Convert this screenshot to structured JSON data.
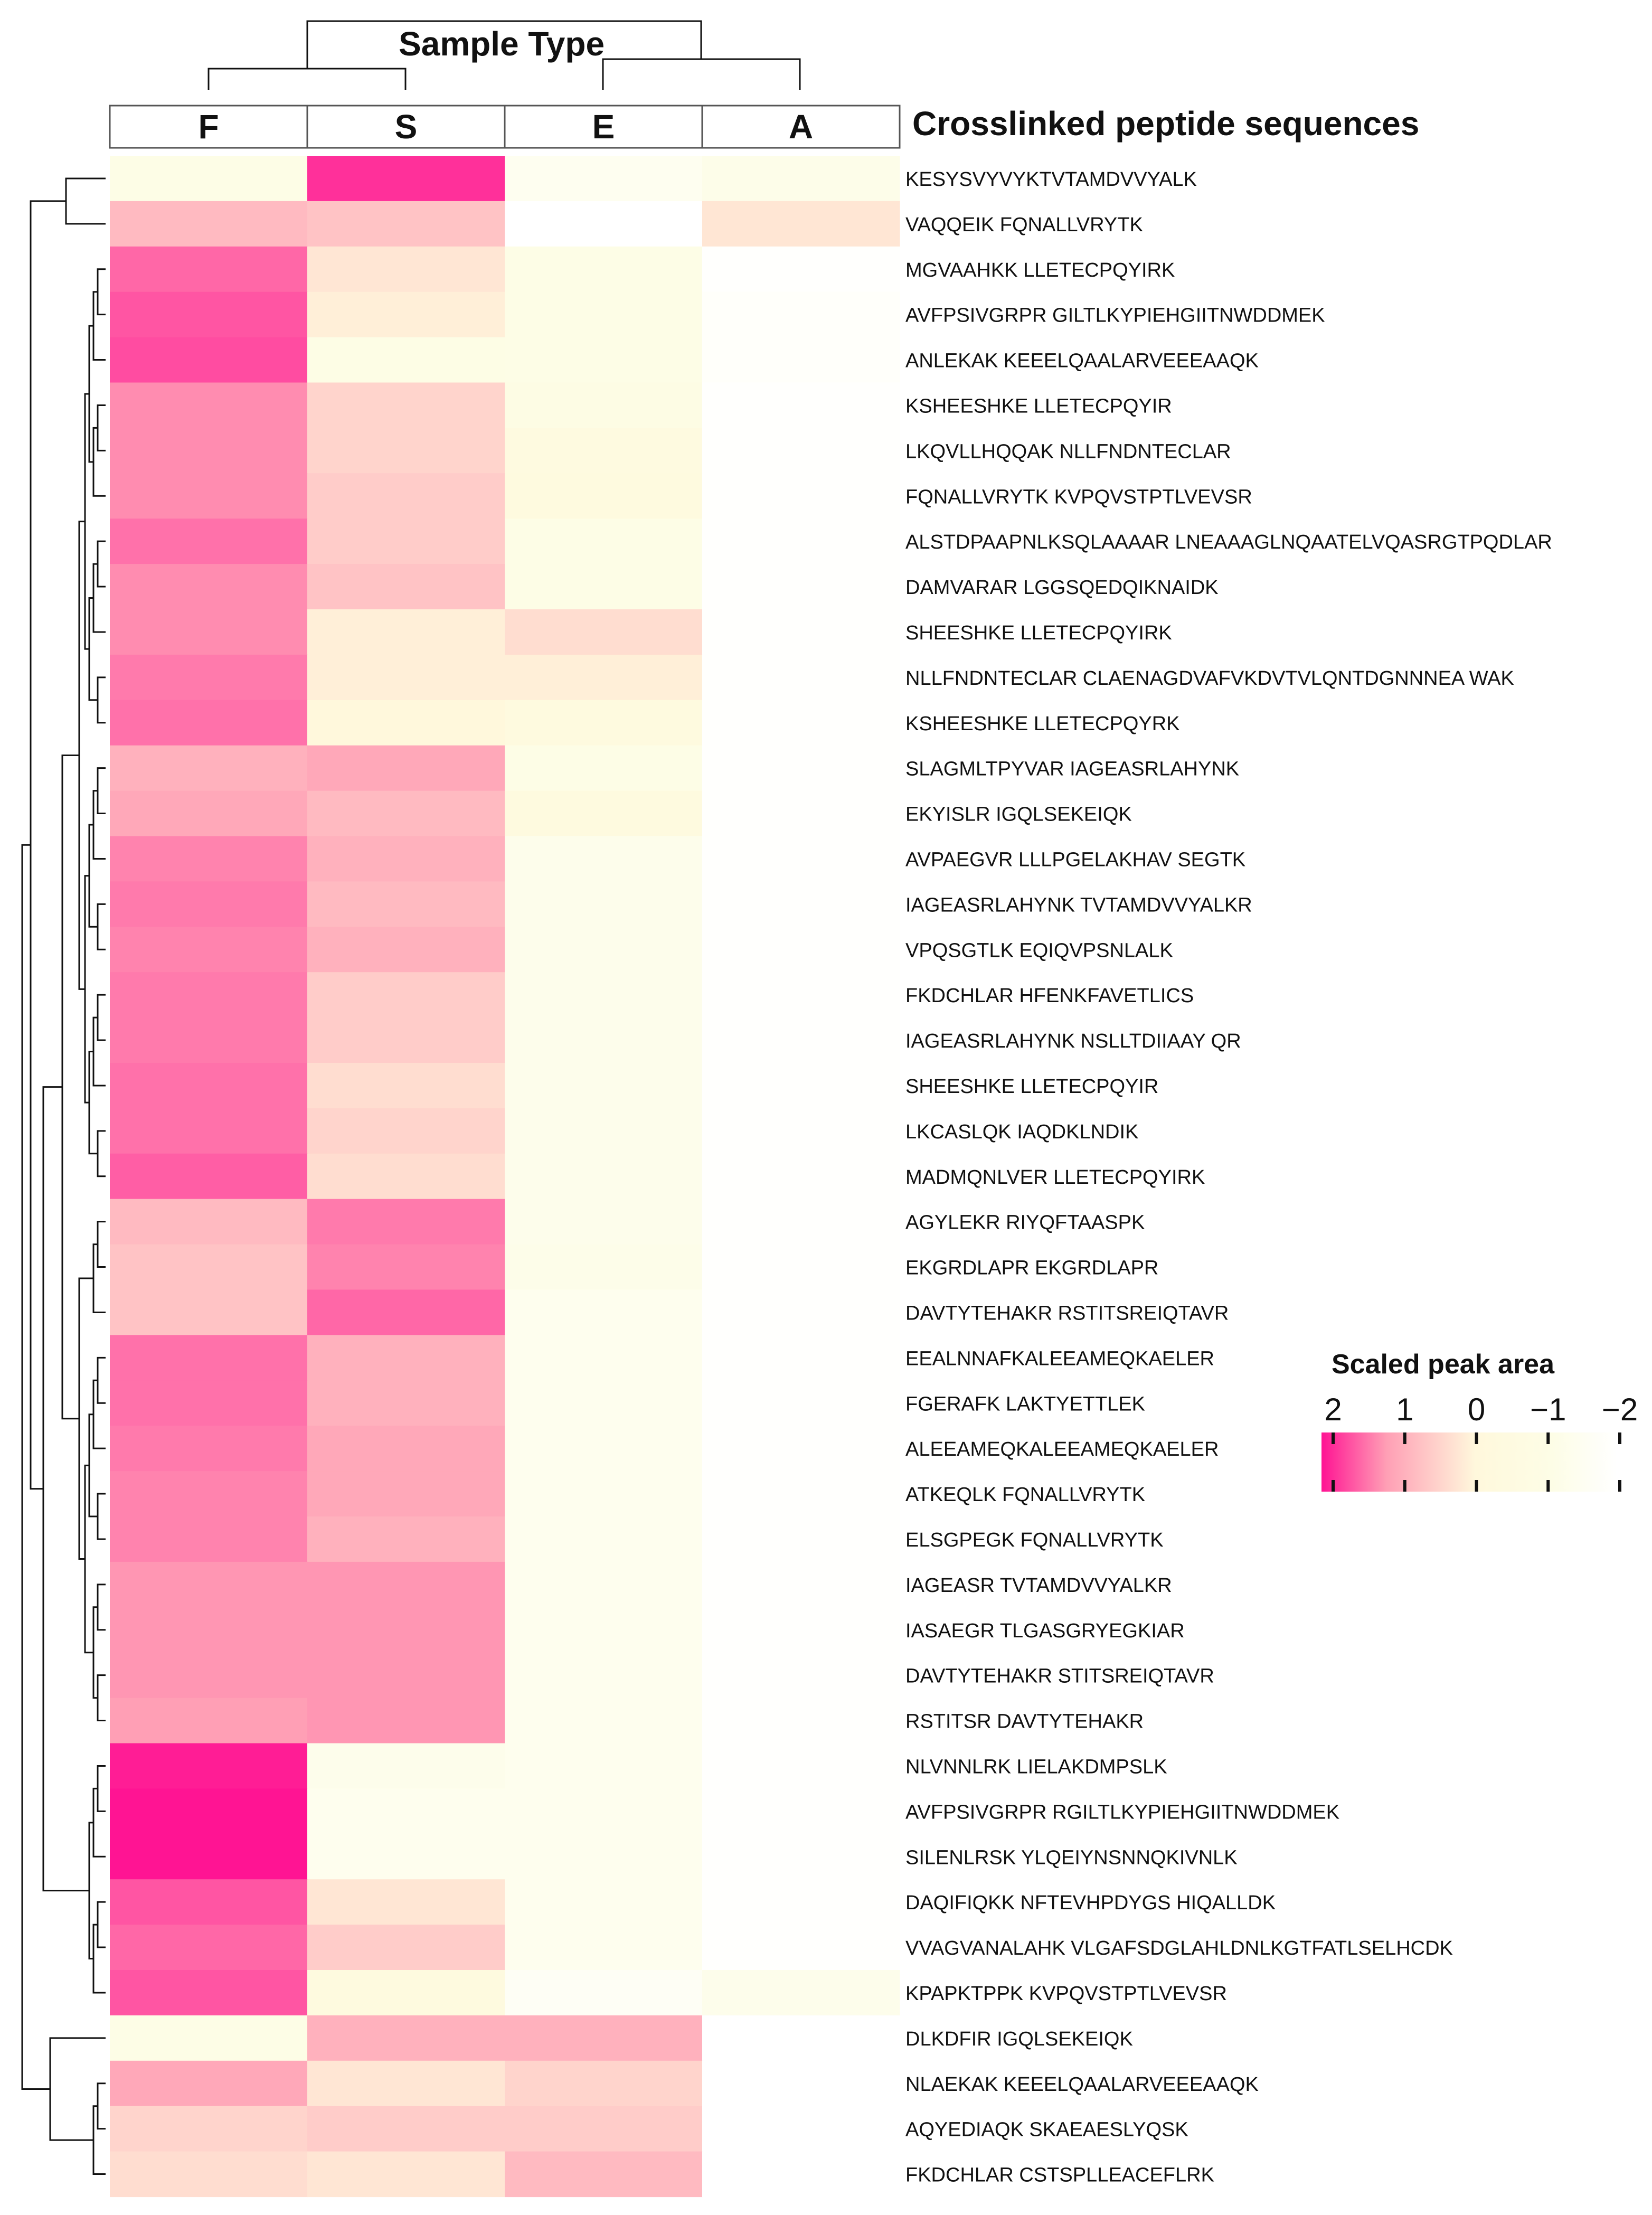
{
  "chart_data": {
    "type": "heatmap",
    "column_dendrogram_title": "Sample Type",
    "row_axis_title": "Crosslinked peptide sequences",
    "columns": [
      "F",
      "S",
      "E",
      "A"
    ],
    "rows": [
      "KESYSVYVYKTVTAMDVVYALK",
      "VAQQEIK FQNALLVRYTK",
      "MGVAAHKK LLETECPQYIRK",
      "AVFPSIVGRPR GILTLKYPIEHGIITNWDDMEK",
      "ANLEKAK KEEELQAALARVEEEAAQK",
      "KSHEESHKE LLETECPQYIR",
      "LKQVLLHQQAK NLLFNDNTECLAR",
      "FQNALLVRYTK KVPQVSTPTLVEVSR",
      "ALSTDPAAPNLKSQLAAAAR LNEAAAGLNQAATELVQASRGTPQDLAR",
      "DAMVARAR LGGSQEDQIKNAIDK",
      "SHEESHKE LLETECPQYIRK",
      "NLLFNDNTECLAR CLAENAGDVAFVKDVTVLQNTDGNNNEA WAK",
      "KSHEESHKE LLETECPQYRK",
      "SLAGMLTPYVAR IAGEASRLAHYNK",
      "EKYISLR IGQLSEKEIQK",
      "AVPAEGVR LLLPGELAKHAV SEGTK",
      "IAGEASRLAHYNK TVTAMDVVYALKR",
      "VPQSGTLK EQIQVPSNLALK",
      "FKDCHLAR HFENKFAVETLICS",
      "IAGEASRLAHYNK NSLLTDIIAAY QR",
      "SHEESHKE LLETECPQYIR",
      "LKCASLQK IAQDKLNDIK",
      "MADMQNLVER LLETECPQYIRK",
      "AGYLEKR RIYQFTAASPK",
      "EKGRDLAPR EKGRDLAPR",
      "DAVTYTEHAKR RSTITSREIQTAVR",
      "EEALNNAFKALEEAMEQKAELER",
      "FGERAFK LAKTYETTLEK",
      "ALEEAMEQKALEEAMEQKAELER",
      "ATKEQLK FQNALLVRYTK",
      "ELSGPEGK FQNALLVRYTK",
      "IAGEASR TVTAMDVVYALKR",
      "IASAEGR TLGASGRYEGKIAR",
      "DAVTYTEHAKR STITSREIQTAVR",
      "RSTITSR DAVTYTEHAKR",
      "NLVNNLRK LIELAKDMPSLK",
      "AVFPSIVGRPR RGILTLKYPIEHGIITNWDDMEK",
      "SILENLRSK YLQEIYNSNNQKIVNLK",
      "DAQIFIQKK NFTEVHPDYGS HIQALLDK",
      "VVAGVANALAHK VLGAFSDGLAHLDNLKGTFATLSELHCDK",
      "KPAPKTPPK KVPQVSTPTLVEVSR",
      "DLKDFIR IGQLSEKEIQK",
      "NLAEKAK KEEELQAALARVEEEAAQK",
      "AQYEDIAQK SKAEAESLYQSK",
      "FKDCHLAR CSTSPLLEACEFLRK"
    ],
    "values": [
      [
        -1.0,
        2.2,
        -1.4,
        -1.1
      ],
      [
        0.7,
        0.6,
        -2.0,
        0.2
      ],
      [
        1.6,
        0.2,
        -1.0,
        -1.9
      ],
      [
        1.8,
        0.1,
        -1.0,
        -1.8
      ],
      [
        1.9,
        -0.9,
        -1.0,
        -1.8
      ],
      [
        1.2,
        0.4,
        -0.8,
        -1.9
      ],
      [
        1.2,
        0.4,
        -0.4,
        -1.9
      ],
      [
        1.2,
        0.5,
        -0.3,
        -1.9
      ],
      [
        1.5,
        0.5,
        -1.0,
        -1.9
      ],
      [
        1.2,
        0.6,
        -1.0,
        -1.9
      ],
      [
        1.2,
        0.1,
        0.3,
        -1.9
      ],
      [
        1.4,
        0.1,
        0.1,
        -1.9
      ],
      [
        1.5,
        0.0,
        -0.3,
        -1.9
      ],
      [
        0.8,
        0.9,
        -1.0,
        -1.9
      ],
      [
        0.9,
        0.7,
        -0.3,
        -1.9
      ],
      [
        1.3,
        0.8,
        -1.2,
        -1.9
      ],
      [
        1.4,
        0.7,
        -1.2,
        -1.9
      ],
      [
        1.3,
        0.8,
        -1.2,
        -1.9
      ],
      [
        1.4,
        0.5,
        -1.2,
        -1.9
      ],
      [
        1.4,
        0.5,
        -1.2,
        -1.9
      ],
      [
        1.5,
        0.3,
        -1.2,
        -1.9
      ],
      [
        1.5,
        0.4,
        -1.2,
        -1.9
      ],
      [
        1.7,
        0.3,
        -1.2,
        -1.9
      ],
      [
        0.7,
        1.4,
        -1.2,
        -1.9
      ],
      [
        0.6,
        1.3,
        -1.1,
        -1.9
      ],
      [
        0.6,
        1.6,
        -1.3,
        -1.9
      ],
      [
        1.5,
        0.8,
        -1.3,
        -1.9
      ],
      [
        1.5,
        0.8,
        -1.3,
        -1.9
      ],
      [
        1.4,
        0.9,
        -1.3,
        -1.9
      ],
      [
        1.3,
        0.9,
        -1.3,
        -1.9
      ],
      [
        1.3,
        0.8,
        -1.3,
        -1.9
      ],
      [
        1.1,
        1.1,
        -1.3,
        -1.9
      ],
      [
        1.1,
        1.1,
        -1.3,
        -1.9
      ],
      [
        1.1,
        1.1,
        -1.3,
        -1.9
      ],
      [
        1.0,
        1.1,
        -1.3,
        -1.9
      ],
      [
        2.4,
        -1.2,
        -1.3,
        -1.9
      ],
      [
        2.5,
        -1.3,
        -1.3,
        -1.9
      ],
      [
        2.5,
        -1.3,
        -1.3,
        -1.9
      ],
      [
        1.8,
        0.2,
        -1.3,
        -1.9
      ],
      [
        1.6,
        0.5,
        -1.3,
        -1.9
      ],
      [
        1.8,
        -0.3,
        -1.6,
        -1.2
      ],
      [
        -1.0,
        0.8,
        0.8,
        -2.0
      ],
      [
        0.9,
        0.2,
        0.4,
        -2.0
      ],
      [
        0.4,
        0.5,
        0.5,
        -2.0
      ],
      [
        0.3,
        0.2,
        0.7,
        -2.0
      ]
    ],
    "legend": {
      "title": "Scaled peak area",
      "ticks": [
        2,
        1,
        0,
        -1,
        -2
      ],
      "tick_labels": [
        "2",
        "1",
        "0",
        "−1",
        "−2"
      ],
      "colors": {
        "high": "#ff1493",
        "mid_high": "#ff9fb5",
        "mid": "#fff8dc",
        "mid_low": "#fdfde6",
        "low": "#ffffff"
      }
    }
  }
}
